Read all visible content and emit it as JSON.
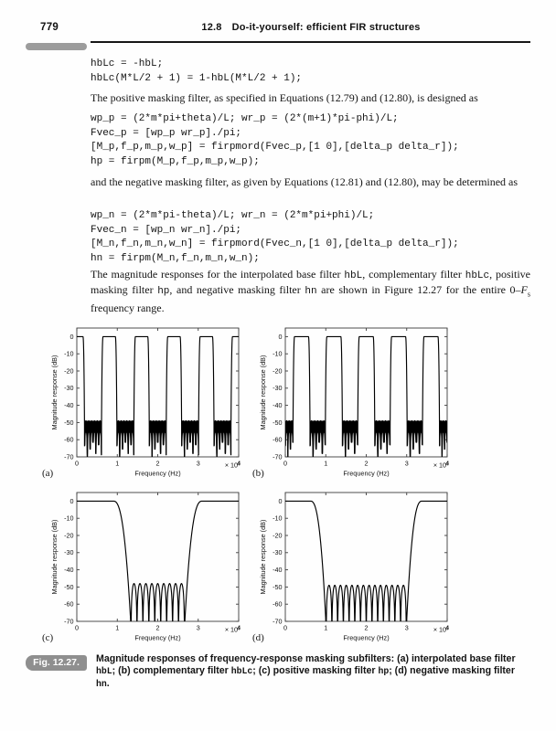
{
  "page": {
    "number": "779",
    "section_number": "12.8",
    "section_title": "Do-it-yourself: efficient FIR structures"
  },
  "colors": {
    "badge": "#8f8f8f",
    "pill": "#9c9c9c",
    "curve": "#000000",
    "frame": "#3c3c3c",
    "text": "#111111"
  },
  "code_blocks": {
    "complement": [
      "hbLc = -hbL;",
      "hbLc(M*L/2 + 1) = 1-hbL(M*L/2 + 1);"
    ],
    "positive": [
      "wp_p = (2*m*pi+theta)/L; wr_p = (2*(m+1)*pi-phi)/L;",
      "Fvec_p = [wp_p wr_p]./pi;",
      "[M_p,f_p,m_p,w_p] = firpmord(Fvec_p,[1 0],[delta_p delta_r]);",
      "hp = firpm(M_p,f_p,m_p,w_p);"
    ],
    "negative": [
      "wp_n = (2*m*pi-theta)/L; wr_n = (2*m*pi+phi)/L;",
      "Fvec_n = [wp_n wr_n]./pi;",
      "[M_n,f_n,m_n,w_n] = firpmord(Fvec_n,[1 0],[delta_p delta_r]);",
      "hn = firpm(M_n,f_n,m_n,w_n);"
    ]
  },
  "paragraphs": {
    "p1": [
      {
        "t": "The positive masking filter, as specified in Equations (12.79) and (12.80), is designed as"
      }
    ],
    "p2": [
      {
        "t": "and the negative masking filter, as given by Equations (12.81) and (12.80), may be determined as"
      }
    ],
    "p3": [
      {
        "t": "The magnitude responses for the interpolated base filter "
      },
      {
        "t": "hbL",
        "mono": true
      },
      {
        "t": ", complementary filter "
      },
      {
        "t": "hbLc",
        "mono": true
      },
      {
        "t": ", positive masking filter "
      },
      {
        "t": "hp",
        "mono": true
      },
      {
        "t": ", and negative masking filter "
      },
      {
        "t": "hn",
        "mono": true
      },
      {
        "t": " are shown in Figure 12.27 for the entire 0–"
      },
      {
        "t": "F",
        "italic": true
      },
      {
        "t": "s",
        "sub": true
      },
      {
        "t": " frequency range."
      }
    ]
  },
  "figure": {
    "label": "Fig. 12.27.",
    "caption": [
      {
        "t": "Magnitude responses of frequency-response masking subfilters: (a) interpolated base filter "
      },
      {
        "t": "hbL",
        "mono": true
      },
      {
        "t": "; (b) complementary filter "
      },
      {
        "t": "hbLc",
        "mono": true
      },
      {
        "t": "; (c) positive masking filter "
      },
      {
        "t": "hp",
        "mono": true
      },
      {
        "t": "; (d) negative masking filter "
      },
      {
        "t": "hn",
        "mono": true
      },
      {
        "t": "."
      }
    ]
  },
  "chart_data": [
    {
      "id": "a",
      "corner_label": "(a)",
      "type": "line",
      "series_name": "interpolated base filter hbL magnitude response",
      "xlabel": "Frequency (Hz)",
      "ylabel": "Magnitude response (dB)",
      "x_multiplier": "× 10",
      "x_multiplier_exponent": "4",
      "xlim": [
        0,
        40000
      ],
      "ylim": [
        -70,
        5
      ],
      "x_tick_values": [
        0,
        10000,
        20000,
        30000,
        40000
      ],
      "x_tick_labels": [
        "0",
        "1",
        "2",
        "3",
        "4"
      ],
      "y_tick_values": [
        0,
        -10,
        -20,
        -30,
        -40,
        -50,
        -60,
        -70
      ],
      "y_tick_labels": [
        "0",
        "-10",
        "-20",
        "-30",
        "-40",
        "-50",
        "-60",
        "-70"
      ],
      "stopband_db": -49,
      "dense_stopbands": true,
      "bands": [
        {
          "b": "pass",
          "f": [
            0,
            1500
          ]
        },
        {
          "b": "trans",
          "f": [
            1500,
            1900
          ],
          "dir": "down"
        },
        {
          "b": "stop",
          "f": [
            1900,
            6100
          ],
          "lobes": 6
        },
        {
          "b": "trans",
          "f": [
            6100,
            6500
          ],
          "dir": "up"
        },
        {
          "b": "pass",
          "f": [
            6500,
            9500
          ]
        },
        {
          "b": "trans",
          "f": [
            9500,
            9900
          ],
          "dir": "down"
        },
        {
          "b": "stop",
          "f": [
            9900,
            14100
          ],
          "lobes": 6
        },
        {
          "b": "trans",
          "f": [
            14100,
            14500
          ],
          "dir": "up"
        },
        {
          "b": "pass",
          "f": [
            14500,
            17500
          ]
        },
        {
          "b": "trans",
          "f": [
            17500,
            17900
          ],
          "dir": "down"
        },
        {
          "b": "stop",
          "f": [
            17900,
            22100
          ],
          "lobes": 6
        },
        {
          "b": "trans",
          "f": [
            22100,
            22500
          ],
          "dir": "up"
        },
        {
          "b": "pass",
          "f": [
            22500,
            25500
          ]
        },
        {
          "b": "trans",
          "f": [
            25500,
            25900
          ],
          "dir": "down"
        },
        {
          "b": "stop",
          "f": [
            25900,
            30100
          ],
          "lobes": 6
        },
        {
          "b": "trans",
          "f": [
            30100,
            30500
          ],
          "dir": "up"
        },
        {
          "b": "pass",
          "f": [
            30500,
            33500
          ]
        },
        {
          "b": "trans",
          "f": [
            33500,
            33900
          ],
          "dir": "down"
        },
        {
          "b": "stop",
          "f": [
            33900,
            38100
          ],
          "lobes": 6
        },
        {
          "b": "trans",
          "f": [
            38100,
            38500
          ],
          "dir": "up"
        },
        {
          "b": "pass",
          "f": [
            38500,
            40000
          ]
        }
      ]
    },
    {
      "id": "b",
      "corner_label": "(b)",
      "type": "line",
      "series_name": "complementary filter hbLc magnitude response",
      "xlabel": "Frequency (Hz)",
      "ylabel": "Magnitude response (dB)",
      "x_multiplier": "× 10",
      "x_multiplier_exponent": "4",
      "xlim": [
        0,
        40000
      ],
      "ylim": [
        -70,
        5
      ],
      "x_tick_values": [
        0,
        10000,
        20000,
        30000,
        40000
      ],
      "x_tick_labels": [
        "0",
        "1",
        "2",
        "3",
        "4"
      ],
      "y_tick_values": [
        0,
        -10,
        -20,
        -30,
        -40,
        -50,
        -60,
        -70
      ],
      "y_tick_labels": [
        "0",
        "-10",
        "-20",
        "-30",
        "-40",
        "-50",
        "-60",
        "-70"
      ],
      "stopband_db": -49,
      "dense_stopbands": true,
      "bands": [
        {
          "b": "stop",
          "f": [
            0,
            1900
          ],
          "lobes": 3
        },
        {
          "b": "trans",
          "f": [
            1900,
            2300
          ],
          "dir": "up"
        },
        {
          "b": "pass",
          "f": [
            2300,
            5700
          ]
        },
        {
          "b": "trans",
          "f": [
            5700,
            6100
          ],
          "dir": "down"
        },
        {
          "b": "stop",
          "f": [
            6100,
            9900
          ],
          "lobes": 5
        },
        {
          "b": "trans",
          "f": [
            9900,
            10300
          ],
          "dir": "up"
        },
        {
          "b": "pass",
          "f": [
            10300,
            13700
          ]
        },
        {
          "b": "trans",
          "f": [
            13700,
            14100
          ],
          "dir": "down"
        },
        {
          "b": "stop",
          "f": [
            14100,
            17900
          ],
          "lobes": 5
        },
        {
          "b": "trans",
          "f": [
            17900,
            18300
          ],
          "dir": "up"
        },
        {
          "b": "pass",
          "f": [
            18300,
            21700
          ]
        },
        {
          "b": "trans",
          "f": [
            21700,
            22100
          ],
          "dir": "down"
        },
        {
          "b": "stop",
          "f": [
            22100,
            25900
          ],
          "lobes": 5
        },
        {
          "b": "trans",
          "f": [
            25900,
            26300
          ],
          "dir": "up"
        },
        {
          "b": "pass",
          "f": [
            26300,
            29700
          ]
        },
        {
          "b": "trans",
          "f": [
            29700,
            30100
          ],
          "dir": "down"
        },
        {
          "b": "stop",
          "f": [
            30100,
            33900
          ],
          "lobes": 5
        },
        {
          "b": "trans",
          "f": [
            33900,
            34300
          ],
          "dir": "up"
        },
        {
          "b": "pass",
          "f": [
            34300,
            37700
          ]
        },
        {
          "b": "trans",
          "f": [
            37700,
            38100
          ],
          "dir": "down"
        },
        {
          "b": "stop",
          "f": [
            38100,
            40000
          ],
          "lobes": 3
        }
      ]
    },
    {
      "id": "c",
      "corner_label": "(c)",
      "type": "line",
      "series_name": "positive masking filter hp magnitude response",
      "xlabel": "Frequency (Hz)",
      "ylabel": "Magnitude response (dB)",
      "x_multiplier": "× 10",
      "x_multiplier_exponent": "4",
      "xlim": [
        0,
        40000
      ],
      "ylim": [
        -70,
        5
      ],
      "x_tick_values": [
        0,
        10000,
        20000,
        30000,
        40000
      ],
      "x_tick_labels": [
        "0",
        "1",
        "2",
        "3",
        "4"
      ],
      "y_tick_values": [
        0,
        -10,
        -20,
        -30,
        -40,
        -50,
        -60,
        -70
      ],
      "y_tick_labels": [
        "0",
        "-10",
        "-20",
        "-30",
        "-40",
        "-50",
        "-60",
        "-70"
      ],
      "stopband_db": -48,
      "dense_stopbands": false,
      "bands": [
        {
          "b": "pass",
          "f": [
            0,
            9000
          ]
        },
        {
          "b": "trans",
          "f": [
            9000,
            13400
          ],
          "dir": "down"
        },
        {
          "b": "stop",
          "f": [
            13400,
            26600
          ],
          "lobes": 9
        },
        {
          "b": "trans",
          "f": [
            26600,
            31000
          ],
          "dir": "up"
        },
        {
          "b": "pass",
          "f": [
            31000,
            40000
          ]
        }
      ]
    },
    {
      "id": "d",
      "corner_label": "(d)",
      "type": "line",
      "series_name": "negative masking filter hn magnitude response",
      "xlabel": "Frequency (Hz)",
      "ylabel": "Magnitude response (dB)",
      "x_multiplier": "× 10",
      "x_multiplier_exponent": "4",
      "xlim": [
        0,
        40000
      ],
      "ylim": [
        -70,
        5
      ],
      "x_tick_values": [
        0,
        10000,
        20000,
        30000,
        40000
      ],
      "x_tick_labels": [
        "0",
        "1",
        "2",
        "3",
        "4"
      ],
      "y_tick_values": [
        0,
        -10,
        -20,
        -30,
        -40,
        -50,
        -60,
        -70
      ],
      "y_tick_labels": [
        "0",
        "-10",
        "-20",
        "-30",
        "-40",
        "-50",
        "-60",
        "-70"
      ],
      "stopband_db": -49,
      "dense_stopbands": false,
      "bands": [
        {
          "b": "pass",
          "f": [
            0,
            6200
          ]
        },
        {
          "b": "trans",
          "f": [
            6200,
            10100
          ],
          "dir": "down"
        },
        {
          "b": "stop",
          "f": [
            10100,
            29900
          ],
          "lobes": 14
        },
        {
          "b": "trans",
          "f": [
            29900,
            33800
          ],
          "dir": "up"
        },
        {
          "b": "pass",
          "f": [
            33800,
            40000
          ]
        }
      ]
    }
  ]
}
